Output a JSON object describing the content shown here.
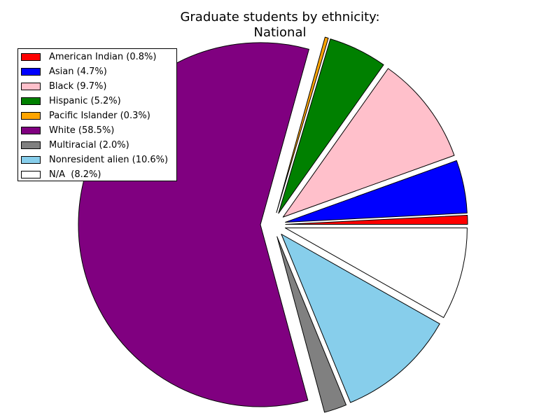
{
  "chart_data": {
    "type": "pie",
    "title_line1": "Graduate students by ethnicity:",
    "title_line2": "National",
    "legend_position": "upper-left",
    "start_angle_deg": 0,
    "direction": "counterclockwise",
    "exploded": true,
    "slices": [
      {
        "label": "American Indian (0.8%)",
        "category": "American Indian",
        "value": 0.8,
        "color": "#ff0000"
      },
      {
        "label": "Asian (4.7%)",
        "category": "Asian",
        "value": 4.7,
        "color": "#0000ff"
      },
      {
        "label": "Black (9.7%)",
        "category": "Black",
        "value": 9.7,
        "color": "#ffc0cb"
      },
      {
        "label": "Hispanic (5.2%)",
        "category": "Hispanic",
        "value": 5.2,
        "color": "#008000"
      },
      {
        "label": "Pacific Islander (0.3%)",
        "category": "Pacific Islander",
        "value": 0.3,
        "color": "#ffa500"
      },
      {
        "label": "White (58.5%)",
        "category": "White",
        "value": 58.5,
        "color": "#800080"
      },
      {
        "label": "Multiracial (2.0%)",
        "category": "Multiracial",
        "value": 2.0,
        "color": "#808080"
      },
      {
        "label": "Nonresident alien (10.6%)",
        "category": "Nonresident alien",
        "value": 10.6,
        "color": "#87ceeb"
      },
      {
        "label": "N/A  (8.2%)",
        "category": "N/A",
        "value": 8.2,
        "color": "#ffffff"
      }
    ]
  }
}
